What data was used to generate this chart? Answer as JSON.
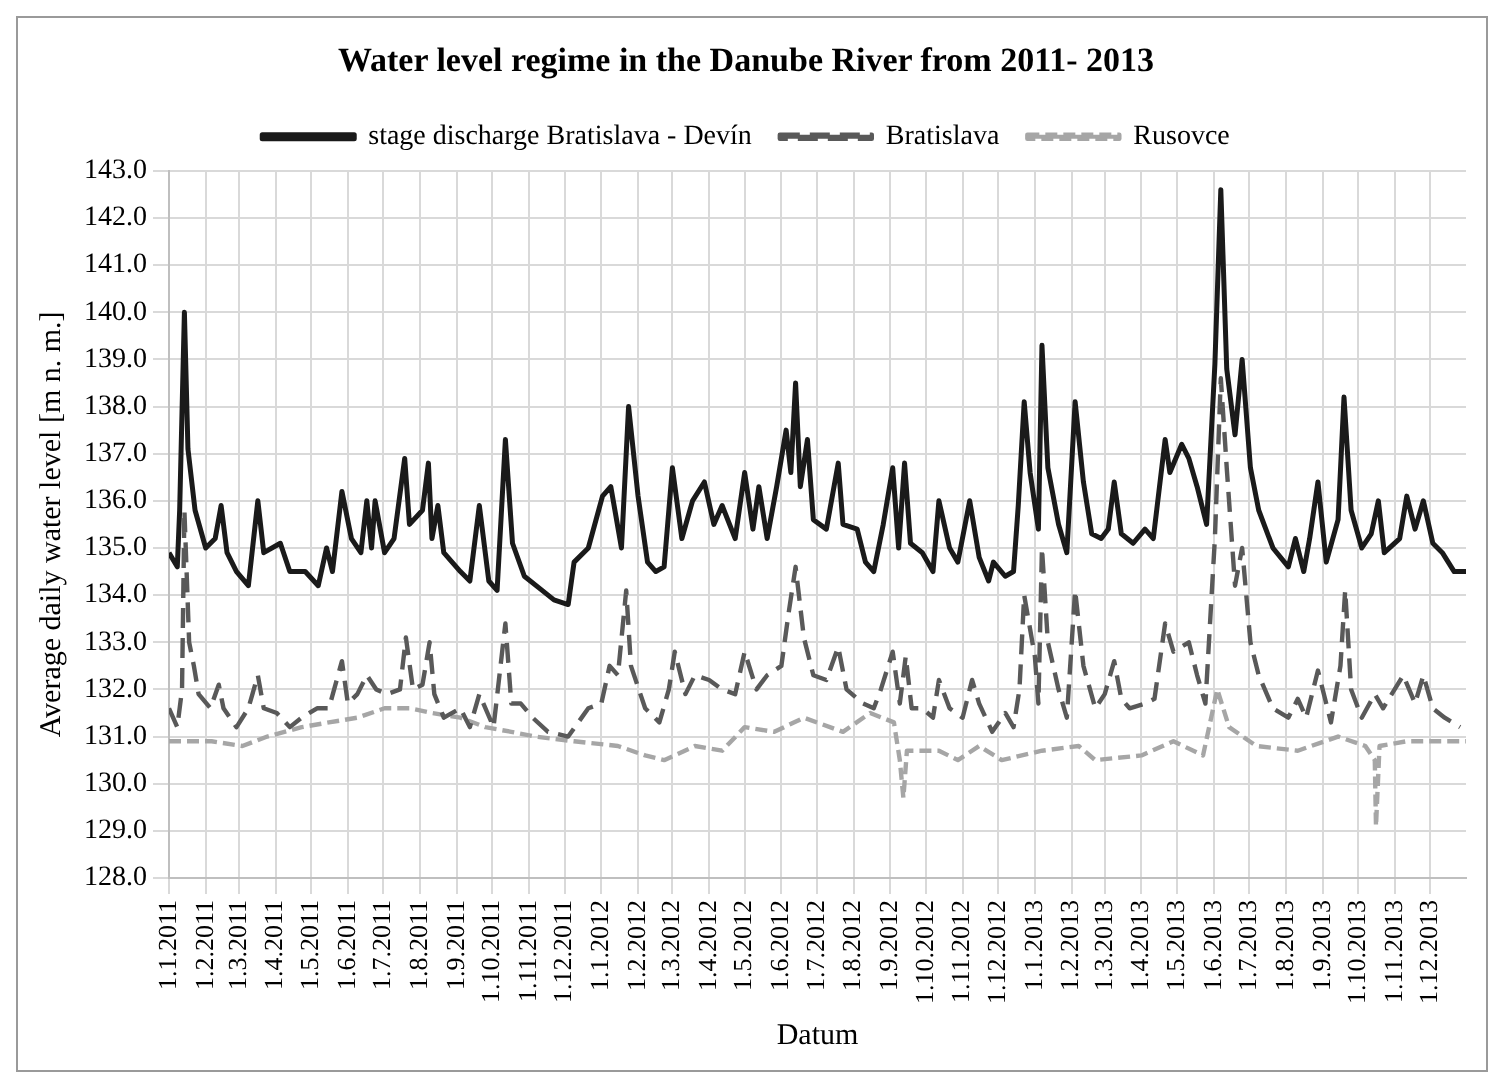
{
  "chart_data": {
    "type": "line",
    "title": "Water level regime in the Danube River from 2011- 2013",
    "xlabel": "Datum",
    "ylabel": "Average daily water level [m n. m.]",
    "xlim": [
      "2011-01-01",
      "2013-12-31"
    ],
    "xticks": [
      {
        "value": "2011-01-01",
        "label": "1.1.2011"
      },
      {
        "value": "2011-02-01",
        "label": "1.2.2011"
      },
      {
        "value": "2011-03-01",
        "label": "1.3.2011"
      },
      {
        "value": "2011-04-01",
        "label": "1.4.2011"
      },
      {
        "value": "2011-05-01",
        "label": "1.5.2011"
      },
      {
        "value": "2011-06-01",
        "label": "1.6.2011"
      },
      {
        "value": "2011-07-01",
        "label": "1.7.2011"
      },
      {
        "value": "2011-08-01",
        "label": "1.8.2011"
      },
      {
        "value": "2011-09-01",
        "label": "1.9.2011"
      },
      {
        "value": "2011-10-01",
        "label": "1.10.2011"
      },
      {
        "value": "2011-11-01",
        "label": "1.11.2011"
      },
      {
        "value": "2011-12-01",
        "label": "1.12.2011"
      },
      {
        "value": "2012-01-01",
        "label": "1.1.2012"
      },
      {
        "value": "2012-02-01",
        "label": "1.2.2012"
      },
      {
        "value": "2012-03-01",
        "label": "1.3.2012"
      },
      {
        "value": "2012-04-01",
        "label": "1.4.2012"
      },
      {
        "value": "2012-05-01",
        "label": "1.5.2012"
      },
      {
        "value": "2012-06-01",
        "label": "1.6.2012"
      },
      {
        "value": "2012-07-01",
        "label": "1.7.2012"
      },
      {
        "value": "2012-08-01",
        "label": "1.8.2012"
      },
      {
        "value": "2012-09-01",
        "label": "1.9.2012"
      },
      {
        "value": "2012-10-01",
        "label": "1.10.2012"
      },
      {
        "value": "2012-11-01",
        "label": "1.11.2012"
      },
      {
        "value": "2012-12-01",
        "label": "1.12.2012"
      },
      {
        "value": "2013-01-01",
        "label": "1.1.2013"
      },
      {
        "value": "2013-02-01",
        "label": "1.2.2013"
      },
      {
        "value": "2013-03-01",
        "label": "1.3.2013"
      },
      {
        "value": "2013-04-01",
        "label": "1.4.2013"
      },
      {
        "value": "2013-05-01",
        "label": "1.5.2013"
      },
      {
        "value": "2013-06-01",
        "label": "1.6.2013"
      },
      {
        "value": "2013-07-01",
        "label": "1.7.2013"
      },
      {
        "value": "2013-08-01",
        "label": "1.8.2013"
      },
      {
        "value": "2013-09-01",
        "label": "1.9.2013"
      },
      {
        "value": "2013-10-01",
        "label": "1.10.2013"
      },
      {
        "value": "2013-11-01",
        "label": "1.11.2013"
      },
      {
        "value": "2013-12-01",
        "label": "1.12.2013"
      }
    ],
    "ylim": [
      128,
      143
    ],
    "yticks": [
      {
        "value": 128,
        "label": "128.0"
      },
      {
        "value": 129,
        "label": "129.0"
      },
      {
        "value": 130,
        "label": "130.0"
      },
      {
        "value": 131,
        "label": "131.0"
      },
      {
        "value": 132,
        "label": "132.0"
      },
      {
        "value": 133,
        "label": "133.0"
      },
      {
        "value": 134,
        "label": "134.0"
      },
      {
        "value": 135,
        "label": "135.0"
      },
      {
        "value": 136,
        "label": "136.0"
      },
      {
        "value": 137,
        "label": "137.0"
      },
      {
        "value": 138,
        "label": "138.0"
      },
      {
        "value": 139,
        "label": "139.0"
      },
      {
        "value": 140,
        "label": "140.0"
      },
      {
        "value": 141,
        "label": "141.0"
      },
      {
        "value": 142,
        "label": "142.0"
      },
      {
        "value": 143,
        "label": "143.0"
      }
    ],
    "grid": true,
    "legend": "top",
    "series": [
      {
        "name": "stage discharge Bratislava - Devín",
        "color": "#1a1a1a",
        "line_style": "solid",
        "x": [
          "2011-01-01",
          "2011-01-08",
          "2011-01-10",
          "2011-01-14",
          "2011-01-17",
          "2011-01-23",
          "2011-02-01",
          "2011-02-09",
          "2011-02-14",
          "2011-02-19",
          "2011-02-27",
          "2011-03-09",
          "2011-03-17",
          "2011-03-22",
          "2011-04-05",
          "2011-04-13",
          "2011-04-26",
          "2011-05-07",
          "2011-05-14",
          "2011-05-19",
          "2011-05-27",
          "2011-06-04",
          "2011-06-12",
          "2011-06-17",
          "2011-06-21",
          "2011-06-24",
          "2011-07-02",
          "2011-07-10",
          "2011-07-19",
          "2011-07-23",
          "2011-08-03",
          "2011-08-08",
          "2011-08-11",
          "2011-08-16",
          "2011-08-21",
          "2011-09-04",
          "2011-09-12",
          "2011-09-20",
          "2011-09-28",
          "2011-10-05",
          "2011-10-12",
          "2011-10-18",
          "2011-10-28",
          "2011-11-12",
          "2011-11-22",
          "2011-12-04",
          "2011-12-09",
          "2011-12-21",
          "2012-01-02",
          "2012-01-09",
          "2012-01-18",
          "2012-01-24",
          "2012-02-01",
          "2012-02-09",
          "2012-02-16",
          "2012-02-23",
          "2012-03-01",
          "2012-03-09",
          "2012-03-18",
          "2012-03-28",
          "2012-04-05",
          "2012-04-12",
          "2012-04-23",
          "2012-05-01",
          "2012-05-08",
          "2012-05-13",
          "2012-05-20",
          "2012-05-28",
          "2012-06-05",
          "2012-06-09",
          "2012-06-13",
          "2012-06-17",
          "2012-06-23",
          "2012-06-28",
          "2012-07-09",
          "2012-07-19",
          "2012-07-23",
          "2012-08-04",
          "2012-08-11",
          "2012-08-18",
          "2012-08-26",
          "2012-09-03",
          "2012-09-08",
          "2012-09-13",
          "2012-09-18",
          "2012-09-28",
          "2012-10-07",
          "2012-10-12",
          "2012-10-21",
          "2012-10-28",
          "2012-11-07",
          "2012-11-15",
          "2012-11-23",
          "2012-11-27",
          "2012-12-07",
          "2012-12-14",
          "2012-12-18",
          "2012-12-23",
          "2012-12-28",
          "2013-01-04",
          "2013-01-07",
          "2013-01-12",
          "2013-01-21",
          "2013-01-28",
          "2013-02-04",
          "2013-02-11",
          "2013-02-18",
          "2013-02-26",
          "2013-03-04",
          "2013-03-09",
          "2013-03-15",
          "2013-03-25",
          "2013-04-04",
          "2013-04-11",
          "2013-04-21",
          "2013-04-25",
          "2013-05-05",
          "2013-05-11",
          "2013-05-18",
          "2013-05-26",
          "2013-06-02",
          "2013-06-07",
          "2013-06-12",
          "2013-06-19",
          "2013-06-25",
          "2013-07-02",
          "2013-07-09",
          "2013-07-21",
          "2013-08-03",
          "2013-08-09",
          "2013-08-16",
          "2013-08-21",
          "2013-08-28",
          "2013-09-04",
          "2013-09-14",
          "2013-09-19",
          "2013-09-25",
          "2013-10-04",
          "2013-10-12",
          "2013-10-18",
          "2013-10-23",
          "2013-11-05",
          "2013-11-11",
          "2013-11-18",
          "2013-11-25",
          "2013-12-03",
          "2013-12-11",
          "2013-12-21",
          "2013-12-31"
        ],
        "values": [
          134.9,
          134.6,
          135.8,
          140.0,
          137.1,
          135.8,
          135.0,
          135.2,
          135.9,
          134.9,
          134.5,
          134.2,
          136.0,
          134.9,
          135.1,
          134.5,
          134.5,
          134.2,
          135.0,
          134.5,
          136.2,
          135.2,
          134.9,
          136.0,
          135.0,
          136.0,
          134.9,
          135.2,
          136.9,
          135.5,
          135.8,
          136.8,
          135.2,
          135.9,
          134.9,
          134.5,
          134.3,
          135.9,
          134.3,
          134.1,
          137.3,
          135.1,
          134.4,
          134.1,
          133.9,
          133.8,
          134.7,
          135.0,
          136.1,
          136.3,
          135.0,
          138.0,
          136.1,
          134.7,
          134.5,
          134.6,
          136.7,
          135.2,
          136.0,
          136.4,
          135.5,
          135.9,
          135.2,
          136.6,
          135.4,
          136.3,
          135.2,
          136.3,
          137.5,
          136.6,
          138.5,
          136.3,
          137.3,
          135.6,
          135.4,
          136.8,
          135.5,
          135.4,
          134.7,
          134.5,
          135.5,
          136.7,
          135.0,
          136.8,
          135.1,
          134.9,
          134.5,
          136.0,
          135.0,
          134.7,
          136.0,
          134.8,
          134.3,
          134.7,
          134.4,
          134.5,
          135.9,
          138.1,
          136.6,
          135.4,
          139.3,
          136.7,
          135.5,
          134.9,
          138.1,
          136.4,
          135.3,
          135.2,
          135.4,
          136.4,
          135.3,
          135.1,
          135.4,
          135.2,
          137.3,
          136.6,
          137.2,
          136.9,
          136.3,
          135.5,
          138.9,
          142.6,
          138.8,
          137.4,
          139.0,
          136.7,
          135.8,
          135.0,
          134.6,
          135.2,
          134.5,
          135.2,
          136.4,
          134.7,
          135.6,
          138.2,
          135.8,
          135.0,
          135.3,
          136.0,
          134.9,
          135.2,
          136.1,
          135.4,
          136.0,
          135.1,
          134.9,
          134.5,
          134.5
        ]
      },
      {
        "name": "Bratislava",
        "color": "#595959",
        "line_style": "dashed",
        "x": [
          "2011-01-01",
          "2011-01-08",
          "2011-01-12",
          "2011-01-14",
          "2011-01-18",
          "2011-01-22",
          "2011-01-26",
          "2011-02-05",
          "2011-02-12",
          "2011-02-16",
          "2011-02-27",
          "2011-03-09",
          "2011-03-17",
          "2011-03-22",
          "2011-04-02",
          "2011-04-13",
          "2011-04-23",
          "2011-05-06",
          "2011-05-16",
          "2011-05-27",
          "2011-06-01",
          "2011-06-09",
          "2011-06-17",
          "2011-06-25",
          "2011-07-04",
          "2011-07-15",
          "2011-07-20",
          "2011-07-26",
          "2011-08-03",
          "2011-08-09",
          "2011-08-13",
          "2011-08-21",
          "2011-09-04",
          "2011-09-12",
          "2011-09-20",
          "2011-10-02",
          "2011-10-12",
          "2011-10-17",
          "2011-10-25",
          "2011-11-04",
          "2011-11-17",
          "2011-12-04",
          "2011-12-21",
          "2012-01-01",
          "2012-01-08",
          "2012-01-15",
          "2012-01-22",
          "2012-01-26",
          "2012-02-07",
          "2012-02-19",
          "2012-02-27",
          "2012-03-03",
          "2012-03-12",
          "2012-03-20",
          "2012-04-01",
          "2012-04-12",
          "2012-04-23",
          "2012-05-01",
          "2012-05-11",
          "2012-05-20",
          "2012-06-01",
          "2012-06-07",
          "2012-06-13",
          "2012-06-20",
          "2012-06-28",
          "2012-07-09",
          "2012-07-19",
          "2012-07-26",
          "2012-08-09",
          "2012-08-18",
          "2012-08-24",
          "2012-09-03",
          "2012-09-09",
          "2012-09-14",
          "2012-09-19",
          "2012-09-28",
          "2012-10-07",
          "2012-10-12",
          "2012-10-21",
          "2012-11-01",
          "2012-11-09",
          "2012-11-15",
          "2012-11-26",
          "2012-12-07",
          "2012-12-14",
          "2012-12-19",
          "2012-12-23",
          "2013-01-01",
          "2013-01-04",
          "2013-01-07",
          "2013-01-12",
          "2013-01-21",
          "2013-01-28",
          "2013-02-04",
          "2013-02-11",
          "2013-02-21",
          "2013-03-01",
          "2013-03-09",
          "2013-03-15",
          "2013-03-22",
          "2013-04-04",
          "2013-04-12",
          "2013-04-21",
          "2013-04-28",
          "2013-05-11",
          "2013-05-18",
          "2013-05-25",
          "2013-06-02",
          "2013-06-07",
          "2013-06-12",
          "2013-06-19",
          "2013-06-25",
          "2013-07-02",
          "2013-07-09",
          "2013-07-21",
          "2013-08-03",
          "2013-08-11",
          "2013-08-18",
          "2013-08-28",
          "2013-09-08",
          "2013-09-16",
          "2013-09-20",
          "2013-09-25",
          "2013-10-04",
          "2013-10-15",
          "2013-10-22",
          "2013-11-08",
          "2013-11-18",
          "2013-11-25",
          "2013-12-03",
          "2013-12-13",
          "2013-12-26"
        ],
        "values": [
          131.6,
          131.2,
          132.0,
          135.8,
          133.0,
          132.5,
          131.9,
          131.6,
          132.1,
          131.6,
          131.2,
          131.6,
          132.3,
          131.6,
          131.5,
          131.2,
          131.4,
          131.6,
          131.6,
          132.6,
          131.7,
          131.9,
          132.3,
          132.0,
          131.9,
          132.0,
          133.1,
          132.0,
          132.1,
          133.0,
          131.9,
          131.4,
          131.6,
          131.2,
          131.9,
          131.2,
          133.4,
          131.7,
          131.7,
          131.4,
          131.1,
          131.0,
          131.6,
          131.7,
          132.5,
          132.3,
          134.1,
          132.5,
          131.6,
          131.3,
          132.0,
          132.8,
          131.9,
          132.3,
          132.2,
          132.0,
          131.9,
          132.8,
          132.0,
          132.3,
          132.5,
          133.6,
          134.6,
          133.1,
          132.3,
          132.2,
          132.9,
          132.0,
          131.7,
          131.6,
          132.0,
          132.8,
          131.7,
          132.7,
          131.6,
          131.6,
          131.4,
          132.2,
          131.6,
          131.4,
          132.2,
          131.7,
          131.1,
          131.5,
          131.2,
          132.0,
          134.0,
          132.7,
          131.7,
          135.0,
          133.0,
          132.0,
          131.4,
          134.1,
          132.5,
          131.6,
          131.9,
          132.6,
          131.8,
          131.6,
          131.7,
          131.8,
          133.4,
          132.8,
          133.0,
          132.3,
          131.7,
          135.2,
          138.6,
          136.7,
          134.2,
          135.0,
          133.0,
          132.3,
          131.6,
          131.4,
          131.8,
          131.4,
          132.4,
          131.3,
          132.5,
          134.1,
          132.0,
          131.4,
          131.9,
          131.6,
          132.3,
          131.7,
          132.3,
          131.6,
          131.4,
          131.2
        ]
      },
      {
        "name": "Rusovce",
        "color": "#a6a6a6",
        "line_style": "dashed",
        "x": [
          "2011-01-01",
          "2011-01-23",
          "2011-02-06",
          "2011-03-04",
          "2011-03-25",
          "2011-04-23",
          "2011-05-16",
          "2011-06-09",
          "2011-07-02",
          "2011-07-23",
          "2011-08-11",
          "2011-09-04",
          "2011-09-25",
          "2011-10-17",
          "2011-11-06",
          "2011-12-09",
          "2012-01-15",
          "2012-02-07",
          "2012-02-23",
          "2012-03-20",
          "2012-04-12",
          "2012-05-01",
          "2012-05-26",
          "2012-06-20",
          "2012-07-23",
          "2012-08-15",
          "2012-09-04",
          "2012-09-09",
          "2012-09-12",
          "2012-09-15",
          "2012-10-12",
          "2012-10-28",
          "2012-11-15",
          "2012-12-04",
          "2013-01-07",
          "2013-02-07",
          "2013-02-21",
          "2013-04-01",
          "2013-04-28",
          "2013-05-23",
          "2013-06-04",
          "2013-06-14",
          "2013-07-07",
          "2013-08-11",
          "2013-09-14",
          "2013-10-07",
          "2013-10-15",
          "2013-10-16",
          "2013-10-19",
          "2013-11-11",
          "2013-12-13",
          "2013-12-31"
        ],
        "values": [
          130.9,
          130.9,
          130.9,
          130.8,
          131.0,
          131.2,
          131.3,
          131.4,
          131.6,
          131.6,
          131.5,
          131.4,
          131.2,
          131.1,
          131.0,
          130.9,
          130.8,
          130.6,
          130.5,
          130.8,
          130.7,
          131.2,
          131.1,
          131.4,
          131.1,
          131.5,
          131.3,
          130.5,
          129.7,
          130.7,
          130.7,
          130.5,
          130.8,
          130.5,
          130.7,
          130.8,
          130.5,
          130.6,
          130.9,
          130.6,
          132.0,
          131.2,
          130.8,
          130.7,
          131.0,
          130.8,
          130.5,
          129.1,
          130.8,
          130.9,
          130.9,
          130.9
        ]
      }
    ]
  }
}
